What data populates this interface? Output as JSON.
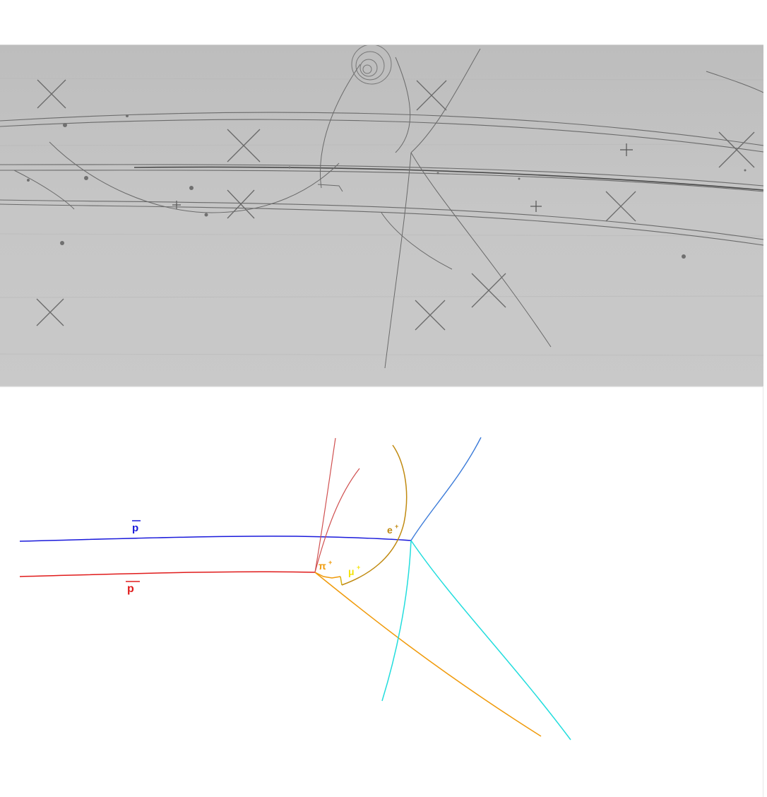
{
  "labels": {
    "antiproton_upper": "p",
    "antiproton_lower": "p",
    "pion_plus": "π",
    "pion_plus_charge": "+",
    "muon_plus": "μ",
    "muon_plus_charge": "+",
    "positron": "e",
    "positron_charge": "+"
  },
  "colors": {
    "antiproton_upper": "#1a1adb",
    "antiproton_lower": "#e01b1b",
    "pion_plus": "#f09a0a",
    "muon_plus": "#f4e40a",
    "positron": "#c08a10",
    "annihilation_prongs": "#d05050",
    "prong_blue": "#3a7ad8",
    "prong_cyan": "#22dddd"
  }
}
